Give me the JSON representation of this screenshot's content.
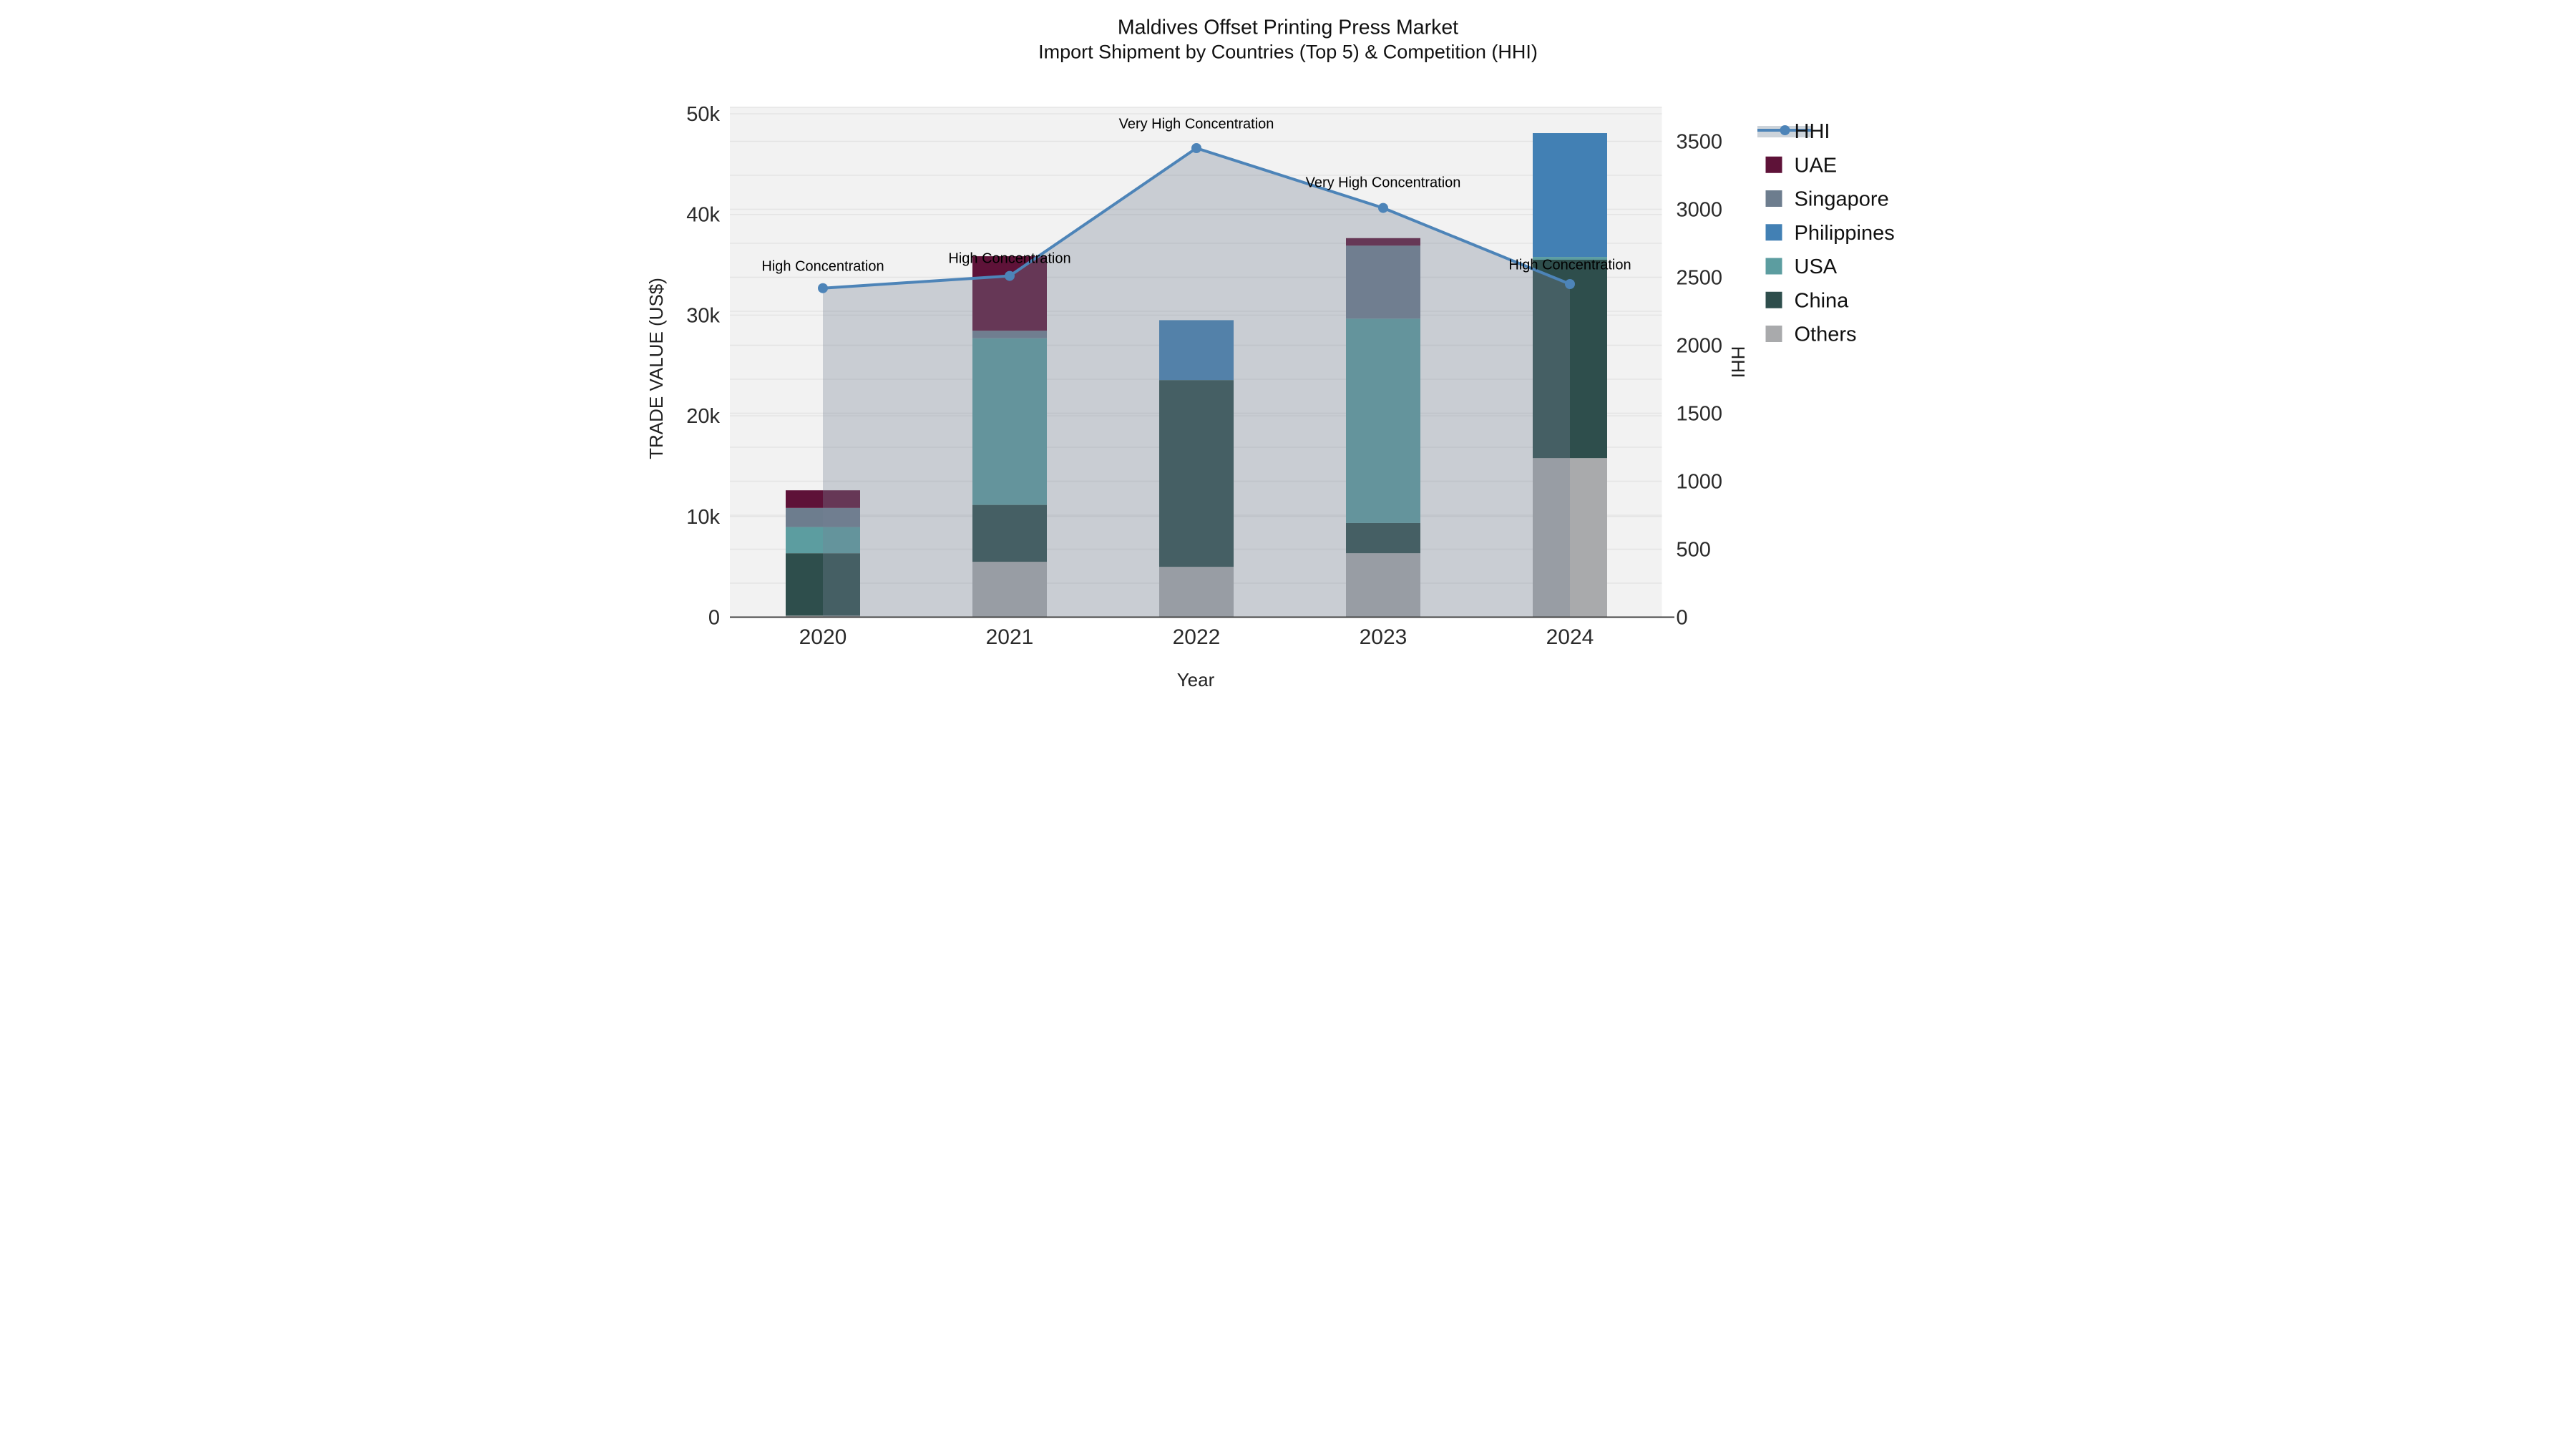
{
  "title": {
    "line1": "Maldives Offset Printing Press Market",
    "line2": "Import Shipment by Countries (Top 5) & Competition (HHI)"
  },
  "axes": {
    "x": {
      "title": "Year",
      "ticks": [
        "2020",
        "2021",
        "2022",
        "2023",
        "2024"
      ]
    },
    "y_left": {
      "title": "TRADE VALUE (US$)",
      "ticks": [
        "0",
        "10k",
        "20k",
        "30k",
        "40k",
        "50k"
      ],
      "tick_values": [
        0,
        10000,
        20000,
        30000,
        40000,
        50000
      ],
      "max": 50640
    },
    "y_right": {
      "title": "HHI",
      "ticks": [
        "0",
        "500",
        "1000",
        "1500",
        "2000",
        "2500",
        "3000",
        "3500"
      ],
      "tick_values": [
        0,
        500,
        1000,
        1500,
        2000,
        2500,
        3000,
        3500
      ],
      "max": 3750
    }
  },
  "legend": {
    "entries": [
      "HHI",
      "UAE",
      "Singapore",
      "Philippines",
      "USA",
      "China",
      "Others"
    ]
  },
  "colors": {
    "uae": "#5e1238",
    "singapore": "#6d7d8e",
    "philippines": "#4280b4",
    "usa": "#5c9da0",
    "china": "#2e4e4c",
    "others": "#a9aaac",
    "hhi_line": "#4d84b8",
    "hhi_area": "rgba(118,132,150,0.33)",
    "plot_bg": "#f2f2f2",
    "gridline": "#e4e4e4",
    "axis_line": "#424242"
  },
  "chart_data": [
    {
      "type": "bar",
      "stacked": true,
      "categories": [
        "2020",
        "2021",
        "2022",
        "2023",
        "2024"
      ],
      "series": [
        {
          "name": "Others",
          "color": "#a9aaac",
          "values": [
            150,
            5500,
            5000,
            6350,
            15800
          ]
        },
        {
          "name": "China",
          "color": "#2e4e4c",
          "values": [
            6200,
            5650,
            18550,
            3000,
            19700
          ]
        },
        {
          "name": "USA",
          "color": "#5c9da0",
          "values": [
            2600,
            16550,
            0,
            20300,
            280
          ]
        },
        {
          "name": "Philippines",
          "color": "#4280b4",
          "values": [
            0,
            0,
            5950,
            0,
            12300
          ]
        },
        {
          "name": "Singapore",
          "color": "#6d7d8e",
          "values": [
            1900,
            750,
            0,
            7250,
            0
          ]
        },
        {
          "name": "UAE",
          "color": "#5e1238",
          "values": [
            1750,
            7400,
            0,
            750,
            0
          ]
        }
      ],
      "totals": [
        12600,
        35850,
        29500,
        37650,
        48080
      ],
      "title": "Maldives Offset Printing Press Market — Import Shipment by Countries (Top 5)",
      "xlabel": "Year",
      "ylabel": "TRADE VALUE (US$)",
      "ylim": [
        0,
        50640
      ],
      "grid": true,
      "legend_position": "right"
    },
    {
      "type": "line",
      "name": "HHI",
      "x": [
        "2020",
        "2021",
        "2022",
        "2023",
        "2024"
      ],
      "values": [
        2420,
        2510,
        3450,
        3010,
        2450
      ],
      "color": "#4d84b8",
      "area_fill": "rgba(118,132,150,0.33)",
      "marker": "circle",
      "axis": "right",
      "ylabel": "HHI",
      "ylim": [
        0,
        3750
      ],
      "annotations": [
        {
          "x": "2020",
          "text": "High Concentration"
        },
        {
          "x": "2021",
          "text": "High Concentration"
        },
        {
          "x": "2022",
          "text": "Very High Concentration"
        },
        {
          "x": "2023",
          "text": "Very High Concentration"
        },
        {
          "x": "2024",
          "text": "High Concentration"
        }
      ]
    }
  ]
}
